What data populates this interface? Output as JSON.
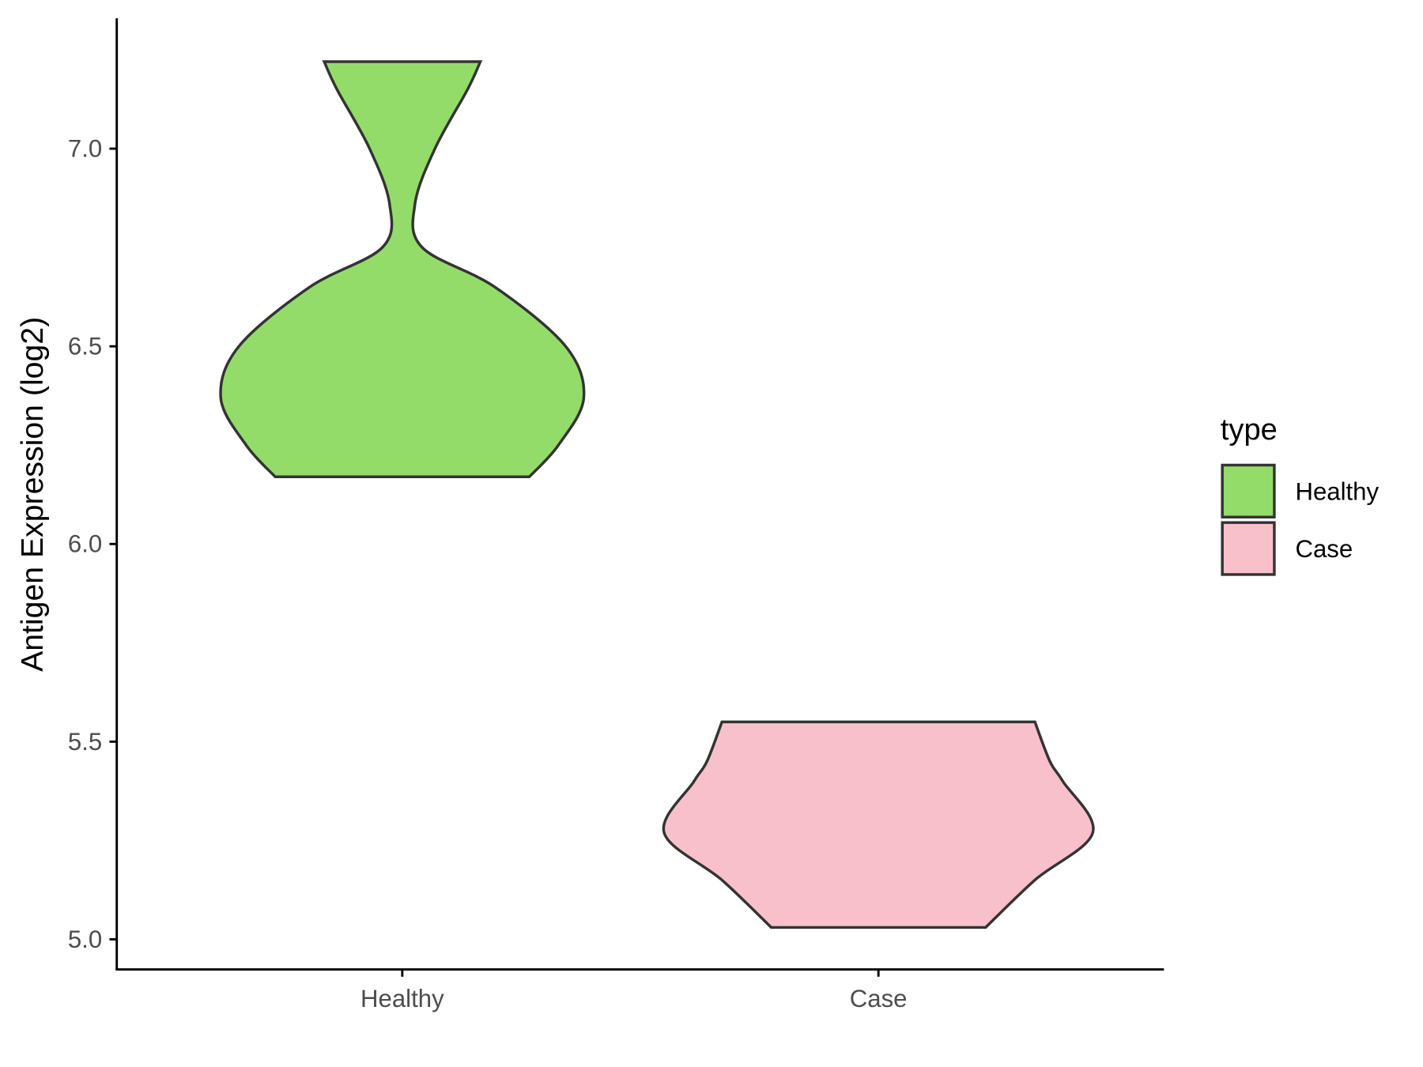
{
  "chart_data": {
    "type": "violin",
    "title": "",
    "xlabel": "",
    "ylabel": "Antigen Expression (log2)",
    "ylim": [
      4.925,
      7.335
    ],
    "yticks": [
      "5.0",
      "5.5",
      "6.0",
      "6.5",
      "7.0"
    ],
    "categories": [
      "Healthy",
      "Case"
    ],
    "grid": false,
    "legend": {
      "title": "type",
      "placement": "right",
      "items": [
        "Healthy",
        "Case"
      ]
    },
    "series": [
      {
        "name": "Healthy",
        "color": "#93DC6A",
        "min": 6.17,
        "max": 7.22,
        "density_profile": [
          [
            6.17,
            0.7
          ],
          [
            6.25,
            0.86
          ],
          [
            6.37,
            1.0
          ],
          [
            6.5,
            0.9
          ],
          [
            6.65,
            0.51
          ],
          [
            6.75,
            0.11
          ],
          [
            6.86,
            0.07
          ],
          [
            7.0,
            0.18
          ],
          [
            7.15,
            0.36
          ],
          [
            7.22,
            0.43
          ]
        ]
      },
      {
        "name": "Case",
        "color": "#F8C0CB",
        "min": 5.03,
        "max": 5.55,
        "density_profile": [
          [
            5.03,
            0.5
          ],
          [
            5.15,
            0.73
          ],
          [
            5.27,
            1.0
          ],
          [
            5.4,
            0.86
          ],
          [
            5.45,
            0.8
          ],
          [
            5.55,
            0.73
          ]
        ]
      }
    ]
  }
}
